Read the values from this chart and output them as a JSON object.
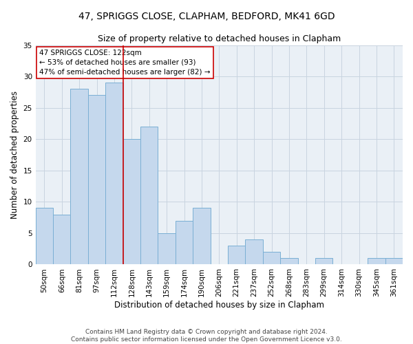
{
  "title": "47, SPRIGGS CLOSE, CLAPHAM, BEDFORD, MK41 6GD",
  "subtitle": "Size of property relative to detached houses in Clapham",
  "xlabel": "Distribution of detached houses by size in Clapham",
  "ylabel": "Number of detached properties",
  "categories": [
    "50sqm",
    "66sqm",
    "81sqm",
    "97sqm",
    "112sqm",
    "128sqm",
    "143sqm",
    "159sqm",
    "174sqm",
    "190sqm",
    "206sqm",
    "221sqm",
    "237sqm",
    "252sqm",
    "268sqm",
    "283sqm",
    "299sqm",
    "314sqm",
    "330sqm",
    "345sqm",
    "361sqm"
  ],
  "values": [
    9,
    8,
    28,
    27,
    29,
    20,
    22,
    5,
    7,
    9,
    0,
    3,
    4,
    2,
    1,
    0,
    1,
    0,
    0,
    1,
    1
  ],
  "bar_color": "#c5d8ed",
  "bar_edge_color": "#7aafd4",
  "vline_x": 4.5,
  "vline_color": "#cc0000",
  "annotation_text": "47 SPRIGGS CLOSE: 122sqm\n← 53% of detached houses are smaller (93)\n47% of semi-detached houses are larger (82) →",
  "annotation_box_color": "#ffffff",
  "annotation_box_edge_color": "#cc0000",
  "ylim": [
    0,
    35
  ],
  "yticks": [
    0,
    5,
    10,
    15,
    20,
    25,
    30,
    35
  ],
  "grid_color": "#c8d4e0",
  "bg_color": "#eaf0f6",
  "footnote": "Contains HM Land Registry data © Crown copyright and database right 2024.\nContains public sector information licensed under the Open Government Licence v3.0.",
  "title_fontsize": 10,
  "subtitle_fontsize": 9,
  "axis_label_fontsize": 8.5,
  "tick_fontsize": 7.5,
  "annotation_fontsize": 7.5,
  "footnote_fontsize": 6.5
}
